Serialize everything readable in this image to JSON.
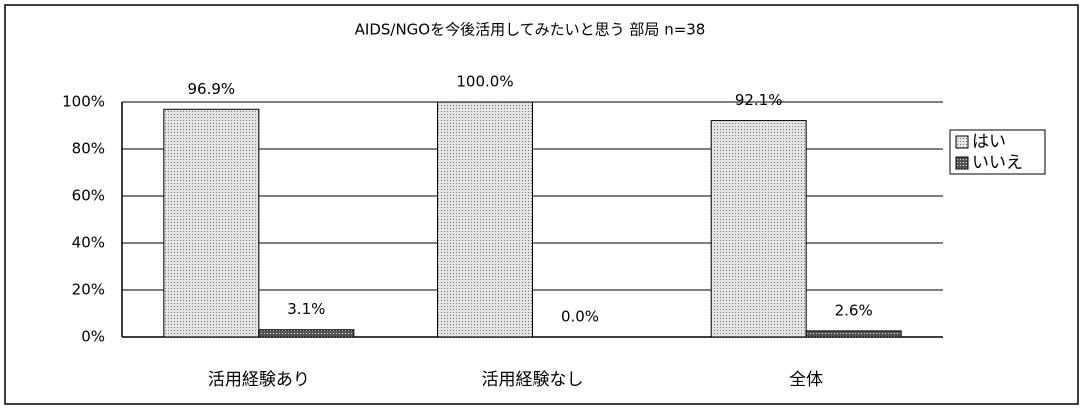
{
  "chart_data": {
    "type": "bar",
    "title": "AIDS/NGOを今後活用してみたいと思う 部局 n=38",
    "categories": [
      "活用経験あり",
      "活用経験なし",
      "全体"
    ],
    "series": [
      {
        "name": "はい",
        "color": "#c8c8c8",
        "values": [
          96.9,
          100.0,
          92.1
        ],
        "value_labels": [
          "96.9%",
          "100.0%",
          "92.1%"
        ]
      },
      {
        "name": "いいえ",
        "color": "#707070",
        "values": [
          3.1,
          0.0,
          2.6
        ],
        "value_labels": [
          "3.1%",
          "0.0%",
          "2.6%"
        ]
      }
    ],
    "ylim": [
      0,
      100
    ],
    "yticks": [
      {
        "value": 0,
        "label": "0%"
      },
      {
        "value": 20,
        "label": "20%"
      },
      {
        "value": 40,
        "label": "40%"
      },
      {
        "value": 60,
        "label": "60%"
      },
      {
        "value": 80,
        "label": "80%"
      },
      {
        "value": 100,
        "label": "100%"
      }
    ],
    "grid": true,
    "legend": "right"
  }
}
